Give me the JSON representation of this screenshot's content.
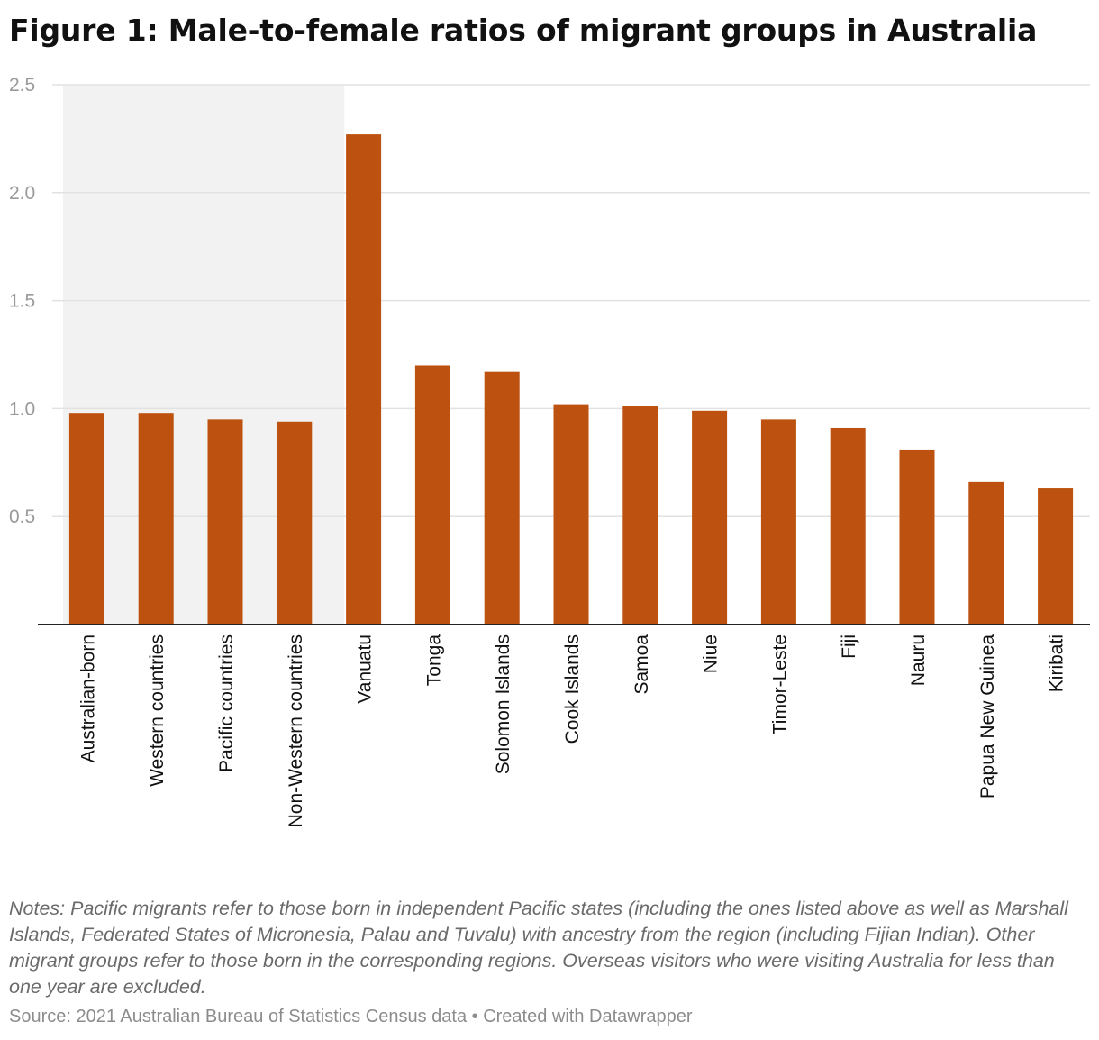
{
  "title": "Figure 1: Male-to-female ratios of migrant groups in Australia",
  "notes": "Notes: Pacific migrants refer to those born in independent Pacific states (including the ones listed above as well as Marshall Islands, Federated States of Micronesia, Palau and Tuvalu) with ancestry from the region (including Fijian Indian). Other migrant groups refer to those born in the corresponding regions. Overseas visitors who were visiting Australia for less than one year are excluded.",
  "source": "Source: 2021 Australian Bureau of Statistics Census data • Created with Datawrapper",
  "colors": {
    "bar": "#bd510f",
    "highlight_band": "#f2f2f2",
    "gridline": "#e2e2e2",
    "axis": "#222222"
  },
  "chart_data": {
    "type": "bar",
    "title": "Figure 1: Male-to-female ratios of migrant groups in Australia",
    "xlabel": "",
    "ylabel": "",
    "ylim": [
      0,
      2.5
    ],
    "yticks": [
      "0.5",
      "1.0",
      "1.5",
      "2.0",
      "2.5"
    ],
    "grid": true,
    "highlighted_categories": [
      "Australian-born",
      "Western countries",
      "Pacific countries",
      "Non-Western countries"
    ],
    "categories": [
      "Australian-born",
      "Western countries",
      "Pacific countries",
      "Non-Western countries",
      "Vanuatu",
      "Tonga",
      "Solomon Islands",
      "Cook Islands",
      "Samoa",
      "Niue",
      "Timor-Leste",
      "Fiji",
      "Nauru",
      "Papua New Guinea",
      "Kiribati"
    ],
    "values": [
      0.98,
      0.98,
      0.95,
      0.94,
      2.27,
      1.2,
      1.17,
      1.02,
      1.01,
      0.99,
      0.95,
      0.91,
      0.81,
      0.66,
      0.63
    ]
  }
}
